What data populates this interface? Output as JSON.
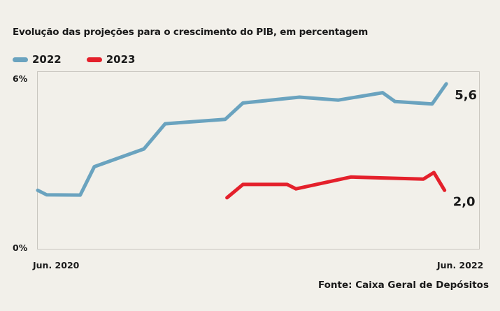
{
  "chart_data": {
    "type": "line",
    "title": "Evolução das projeções para o crescimento do PIB, em percentagem",
    "ytick_labels": [
      "6%",
      "0%"
    ],
    "xtick_labels": [
      "Jun. 2020",
      "Jun. 2022"
    ],
    "ylim": [
      0,
      6
    ],
    "xlim": [
      0,
      24
    ],
    "grid": false,
    "legend_position": "top-left",
    "source": "Fonte: Caixa Geral de Depósitos",
    "series": [
      {
        "name": "2022",
        "color": "#6aa3bf",
        "end_label": "5,6",
        "points": [
          {
            "x": 0.0,
            "y": 2.0
          },
          {
            "x": 0.5,
            "y": 1.85
          },
          {
            "x": 2.4,
            "y": 1.84
          },
          {
            "x": 3.2,
            "y": 2.8
          },
          {
            "x": 6.0,
            "y": 3.4
          },
          {
            "x": 7.2,
            "y": 4.25
          },
          {
            "x": 10.6,
            "y": 4.4
          },
          {
            "x": 11.6,
            "y": 4.95
          },
          {
            "x": 14.8,
            "y": 5.15
          },
          {
            "x": 17.0,
            "y": 5.05
          },
          {
            "x": 19.5,
            "y": 5.3
          },
          {
            "x": 20.2,
            "y": 5.0
          },
          {
            "x": 22.3,
            "y": 4.92
          },
          {
            "x": 23.1,
            "y": 5.6
          }
        ]
      },
      {
        "name": "2023",
        "color": "#e4202b",
        "end_label": "2,0",
        "points": [
          {
            "x": 10.7,
            "y": 1.75
          },
          {
            "x": 11.6,
            "y": 2.2
          },
          {
            "x": 14.1,
            "y": 2.2
          },
          {
            "x": 14.6,
            "y": 2.05
          },
          {
            "x": 17.7,
            "y": 2.45
          },
          {
            "x": 21.8,
            "y": 2.38
          },
          {
            "x": 22.4,
            "y": 2.6
          },
          {
            "x": 23.0,
            "y": 2.0
          }
        ]
      }
    ]
  }
}
